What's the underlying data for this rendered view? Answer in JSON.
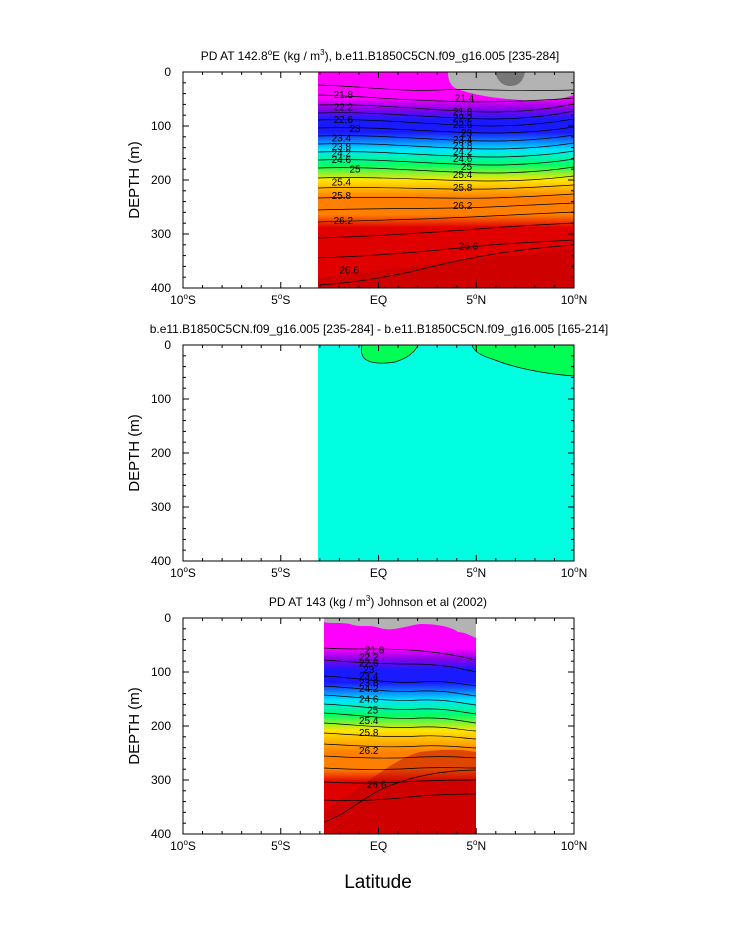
{
  "figure": {
    "xlabel": "Latitude",
    "colors": {
      "magenta": "#ff00ff",
      "purple": "#8b00e6",
      "blue": "#1a1aff",
      "cyan": "#00e5ff",
      "green": "#00ff66",
      "yellow": "#ffe600",
      "orange": "#ff8000",
      "red": "#e00000",
      "darkred": "#c00000",
      "gray": "#b3b3b3",
      "diff_fill": "#00ffe0",
      "diff_green": "#00ff55"
    }
  },
  "chart_data": [
    {
      "type": "heatmap",
      "title_main": "PD AT 142.8",
      "title_deg": "o",
      "title_rest": "E (kg / m",
      "title_sup": "3",
      "title_end": "), b.e11.B1850C5CN.f09_g16.005 [235-284]",
      "ylabel": "DEPTH (m)",
      "xlim": [
        -10,
        10
      ],
      "ylim": [
        400,
        0
      ],
      "data_lat_range": [
        -3,
        10
      ],
      "x_ticks": [
        {
          "v": -10,
          "num": "10",
          "sup": "o",
          "hem": "S"
        },
        {
          "v": -5,
          "num": "5",
          "sup": "o",
          "hem": "S"
        },
        {
          "v": 0,
          "num": "EQ",
          "sup": "",
          "hem": ""
        },
        {
          "v": 5,
          "num": "5",
          "sup": "o",
          "hem": "N"
        },
        {
          "v": 10,
          "num": "10",
          "sup": "o",
          "hem": "N"
        }
      ],
      "y_ticks": [
        0,
        100,
        200,
        300,
        400
      ],
      "contour_labels": [
        {
          "lat": -1.8,
          "depth": 42,
          "text": "21.8"
        },
        {
          "lat": -1.8,
          "depth": 65,
          "text": "22.2"
        },
        {
          "lat": -1.8,
          "depth": 88,
          "text": "22.6"
        },
        {
          "lat": -1.2,
          "depth": 105,
          "text": "23"
        },
        {
          "lat": -1.9,
          "depth": 122,
          "text": "23.4"
        },
        {
          "lat": -1.9,
          "depth": 138,
          "text": "23.8"
        },
        {
          "lat": -1.9,
          "depth": 150,
          "text": "24.2"
        },
        {
          "lat": -1.9,
          "depth": 162,
          "text": "24.6"
        },
        {
          "lat": -1.2,
          "depth": 180,
          "text": "25"
        },
        {
          "lat": -1.9,
          "depth": 204,
          "text": "25.4"
        },
        {
          "lat": -1.9,
          "depth": 229,
          "text": "25.8"
        },
        {
          "lat": -1.8,
          "depth": 275,
          "text": "26.2"
        },
        {
          "lat": -1.5,
          "depth": 367,
          "text": "26.6"
        },
        {
          "lat": 4.4,
          "depth": 48,
          "text": "21.4"
        },
        {
          "lat": 4.3,
          "depth": 73,
          "text": "21.8"
        },
        {
          "lat": 4.3,
          "depth": 85,
          "text": "22.2"
        },
        {
          "lat": 4.3,
          "depth": 97,
          "text": "22.6"
        },
        {
          "lat": 4.5,
          "depth": 113,
          "text": "23"
        },
        {
          "lat": 4.3,
          "depth": 125,
          "text": "23.4"
        },
        {
          "lat": 4.3,
          "depth": 136,
          "text": "23.8"
        },
        {
          "lat": 4.3,
          "depth": 147,
          "text": "24.2"
        },
        {
          "lat": 4.3,
          "depth": 160,
          "text": "24.6"
        },
        {
          "lat": 4.5,
          "depth": 175,
          "text": "25"
        },
        {
          "lat": 4.3,
          "depth": 190,
          "text": "25.4"
        },
        {
          "lat": 4.3,
          "depth": 214,
          "text": "25.8"
        },
        {
          "lat": 4.3,
          "depth": 247,
          "text": "26.2"
        },
        {
          "lat": 4.6,
          "depth": 322,
          "text": "26.6"
        }
      ]
    },
    {
      "type": "heatmap",
      "title": "b.e11.B1850C5CN.f09_g16.005 [235-284] - b.e11.B1850C5CN.f09_g16.005 [165-214]",
      "ylabel": "DEPTH (m)",
      "xlim": [
        -10,
        10
      ],
      "ylim": [
        400,
        0
      ],
      "data_lat_range": [
        -3,
        10
      ],
      "x_ticks": [
        {
          "v": -10,
          "num": "10",
          "sup": "o",
          "hem": "S"
        },
        {
          "v": -5,
          "num": "5",
          "sup": "o",
          "hem": "S"
        },
        {
          "v": 0,
          "num": "EQ",
          "sup": "",
          "hem": ""
        },
        {
          "v": 5,
          "num": "5",
          "sup": "o",
          "hem": "N"
        },
        {
          "v": 10,
          "num": "10",
          "sup": "o",
          "hem": "N"
        }
      ],
      "y_ticks": [
        0,
        100,
        200,
        300,
        400
      ]
    },
    {
      "type": "heatmap",
      "title_main": "PD AT 143 (kg / m",
      "title_sup": "3",
      "title_end": ") Johnson et al (2002)",
      "ylabel": "DEPTH (m)",
      "xlim": [
        -10,
        10
      ],
      "ylim": [
        400,
        0
      ],
      "data_lat_range": [
        -2.6,
        5
      ],
      "x_ticks": [
        {
          "v": -10,
          "num": "10",
          "sup": "o",
          "hem": "S"
        },
        {
          "v": -5,
          "num": "5",
          "sup": "o",
          "hem": "S"
        },
        {
          "v": 0,
          "num": "EQ",
          "sup": "",
          "hem": ""
        },
        {
          "v": 5,
          "num": "5",
          "sup": "o",
          "hem": "N"
        },
        {
          "v": 10,
          "num": "10",
          "sup": "o",
          "hem": "N"
        }
      ],
      "y_ticks": [
        0,
        100,
        200,
        300,
        400
      ],
      "contour_labels": [
        {
          "lat": -0.2,
          "depth": 59,
          "text": "21.8"
        },
        {
          "lat": -0.5,
          "depth": 72,
          "text": "22.2"
        },
        {
          "lat": -0.5,
          "depth": 83,
          "text": "22.6"
        },
        {
          "lat": -0.5,
          "depth": 95,
          "text": "23"
        },
        {
          "lat": -0.5,
          "depth": 107,
          "text": "23.4"
        },
        {
          "lat": -0.5,
          "depth": 119,
          "text": "23.8"
        },
        {
          "lat": -0.5,
          "depth": 131,
          "text": "24.2"
        },
        {
          "lat": -0.5,
          "depth": 150,
          "text": "24.6"
        },
        {
          "lat": -0.3,
          "depth": 170,
          "text": "25"
        },
        {
          "lat": -0.5,
          "depth": 190,
          "text": "25.4"
        },
        {
          "lat": -0.5,
          "depth": 212,
          "text": "25.8"
        },
        {
          "lat": -0.5,
          "depth": 245,
          "text": "26.2"
        },
        {
          "lat": -0.1,
          "depth": 308,
          "text": "26.6"
        }
      ]
    }
  ]
}
